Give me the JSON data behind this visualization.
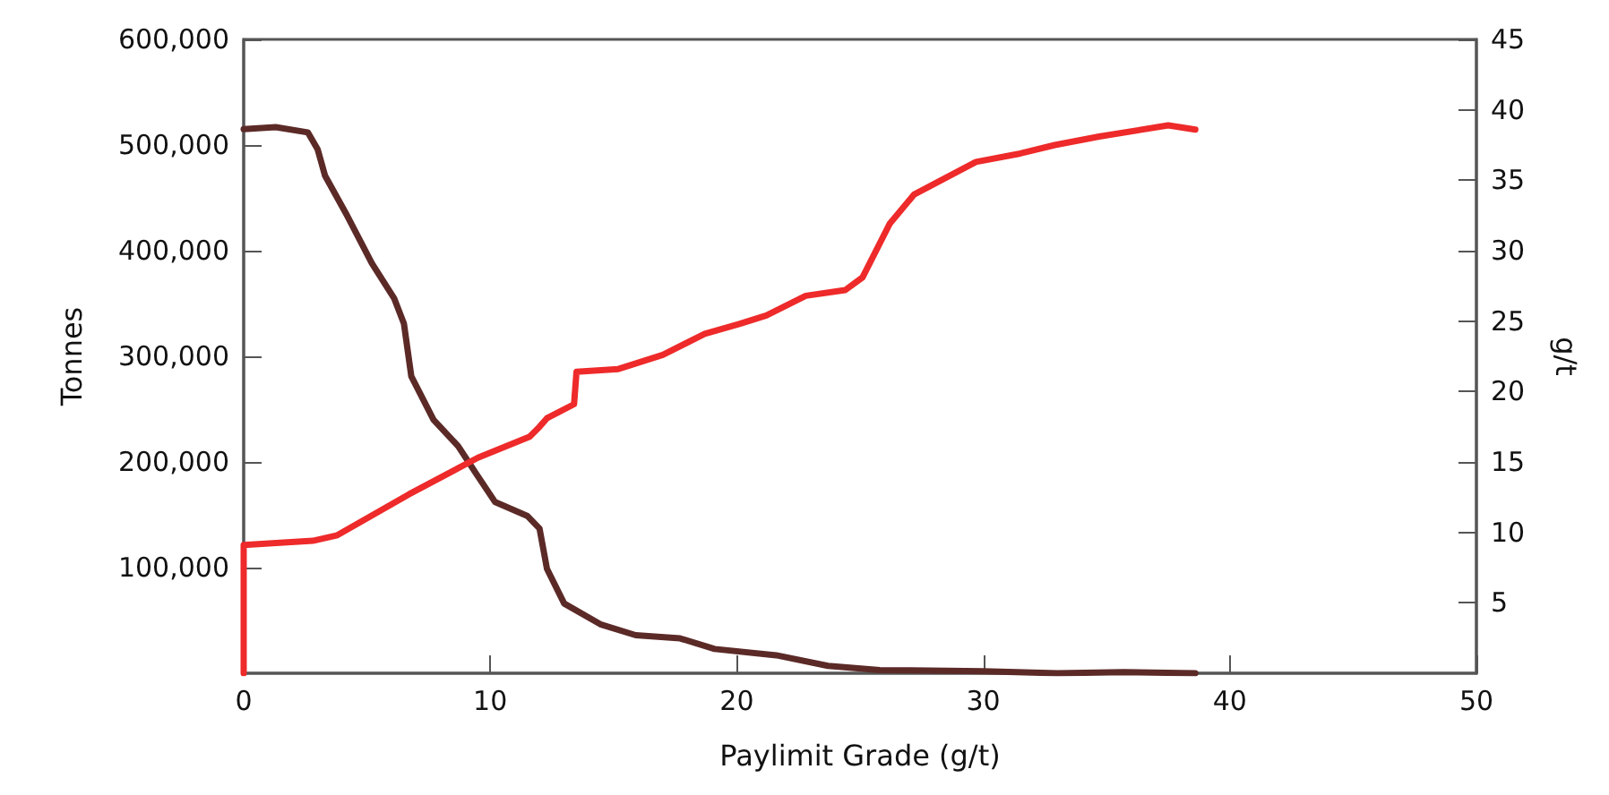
{
  "chart_data": {
    "type": "line",
    "xlabel": "Paylimit Grade (g/t)",
    "ylabel": "Tonnes",
    "y2label": "g/t",
    "xlim": [
      0,
      50
    ],
    "xticks": [
      0,
      10,
      20,
      30,
      40,
      50
    ],
    "ylim": [
      0,
      600000
    ],
    "yticks": [
      {
        "value": 100000,
        "label": "100,000"
      },
      {
        "value": 200000,
        "label": "200,000"
      },
      {
        "value": 300000,
        "label": "300,000"
      },
      {
        "value": 400000,
        "label": "400,000"
      },
      {
        "value": 500000,
        "label": "500,000"
      },
      {
        "value": 600000,
        "label": "600,000"
      }
    ],
    "y2lim": [
      0,
      45
    ],
    "y2ticks": [
      5,
      10,
      15,
      20,
      25,
      30,
      35,
      40,
      45
    ],
    "grid": false,
    "marker": "none",
    "line_style": "solid",
    "series": [
      {
        "color": "#5b2a27",
        "x": [
          0,
          1.3,
          2.6,
          3,
          3.3,
          4.2,
          5.2,
          6.1,
          6.5,
          6.8,
          7.7,
          8.7,
          9.4,
          10.2,
          11.5,
          12,
          12.3,
          13,
          14.5,
          15.9,
          17.7,
          19.1,
          21.6,
          23.7,
          25.8,
          30,
          33,
          35.7,
          38.6
        ],
        "values": [
          515000,
          517000,
          512000,
          496000,
          471000,
          433000,
          388000,
          355000,
          331000,
          281000,
          240000,
          215000,
          190000,
          162000,
          149000,
          137000,
          99000,
          66000,
          46000,
          36000,
          33000,
          23000,
          17000,
          7000,
          3000,
          2000,
          0,
          1000,
          0
        ]
      },
      {
        "color": "#ee2a2a",
        "axis": "y2",
        "x": [
          0,
          0,
          2.8,
          3.8,
          6.7,
          9.5,
          11.6,
          12,
          12.3,
          13.4,
          13.5,
          15.2,
          17,
          18.7,
          20.1,
          21.2,
          22.8,
          24.4,
          25.1,
          26.2,
          27.2,
          29.7,
          31.5,
          32.9,
          34.7,
          37.5,
          38.6
        ],
        "values": [
          0,
          9.1,
          9.4,
          9.8,
          12.7,
          15.3,
          16.8,
          17.5,
          18.1,
          19.1,
          21.4,
          21.6,
          22.6,
          24.1,
          24.8,
          25.4,
          26.8,
          27.2,
          28.1,
          31.9,
          34,
          36.3,
          36.9,
          37.5,
          38.1,
          38.9,
          38.6
        ]
      }
    ]
  }
}
